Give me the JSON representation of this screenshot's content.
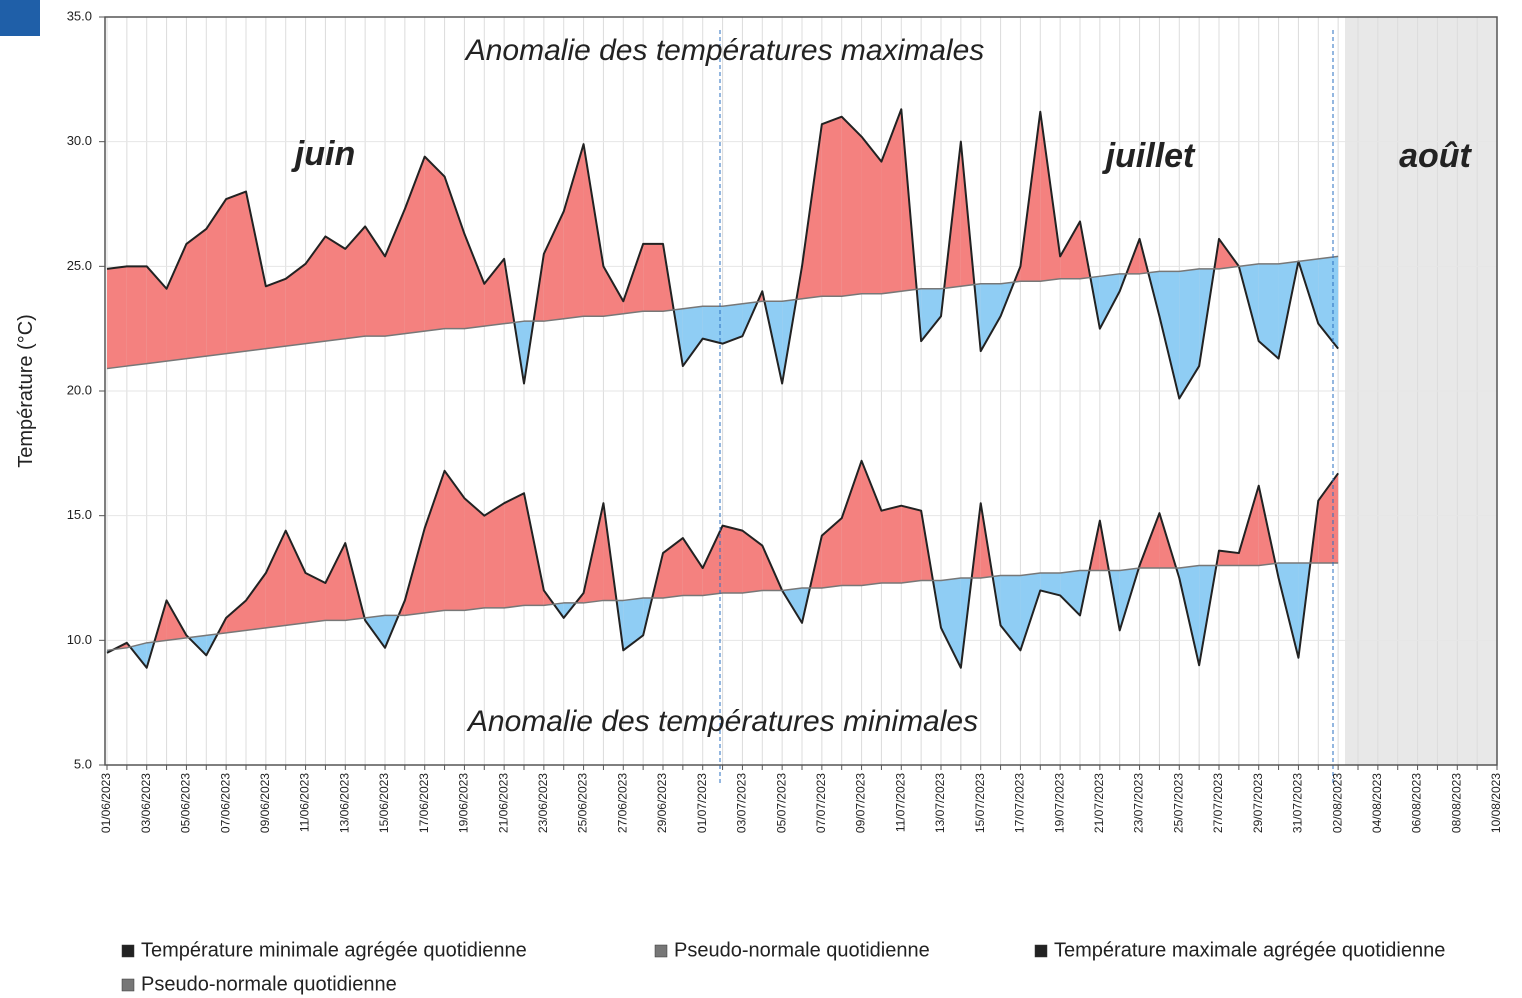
{
  "chart_data": {
    "type": "line",
    "y_label": "Température (°C)",
    "annotations": [
      {
        "text": "Anomalie des températures maximales"
      },
      {
        "text": "Anomalie des températures minimales"
      },
      {
        "text": "juin"
      },
      {
        "text": "juillet"
      },
      {
        "text": "août"
      }
    ],
    "categories": [
      "01/06/2023",
      null,
      "03/06/2023",
      null,
      "05/06/2023",
      null,
      "07/06/2023",
      null,
      "09/06/2023",
      null,
      "11/06/2023",
      null,
      "13/06/2023",
      null,
      "15/06/2023",
      null,
      "17/06/2023",
      null,
      "19/06/2023",
      null,
      "21/06/2023",
      null,
      "23/06/2023",
      null,
      "25/06/2023",
      null,
      "27/06/2023",
      null,
      "29/06/2023",
      null,
      "01/07/2023",
      null,
      "03/07/2023",
      null,
      "05/07/2023",
      null,
      "07/07/2023",
      null,
      "09/07/2023",
      null,
      "11/07/2023",
      null,
      "13/07/2023",
      null,
      "15/07/2023",
      null,
      "17/07/2023",
      null,
      "19/07/2023",
      null,
      "21/07/2023",
      null,
      "23/07/2023",
      null,
      "25/07/2023",
      null,
      "27/07/2023",
      null,
      "29/07/2023",
      null,
      "31/07/2023",
      null,
      "02/08/2023",
      null,
      "04/08/2023",
      null,
      "06/08/2023",
      null,
      "08/08/2023",
      null,
      "10/08/2023"
    ],
    "series": [
      {
        "name": "Température minimale agrégée quotidienne",
        "color": "#222222",
        "values": [
          9.5,
          9.9,
          8.9,
          11.6,
          10.2,
          9.4,
          10.9,
          11.6,
          12.7,
          14.4,
          12.7,
          12.3,
          13.9,
          10.8,
          9.7,
          11.6,
          14.5,
          16.8,
          15.7,
          15.0,
          15.5,
          15.9,
          12.0,
          10.9,
          11.9,
          15.5,
          9.6,
          10.2,
          13.5,
          14.1,
          12.9,
          14.6,
          14.4,
          13.8,
          12.0,
          10.7,
          14.2,
          14.9,
          17.2,
          15.2,
          15.4,
          15.2,
          10.5,
          8.9,
          15.5,
          10.6,
          9.6,
          12.0,
          11.8,
          11.0,
          14.8,
          10.4,
          13.0,
          15.1,
          12.5,
          9.0,
          13.6,
          13.5,
          16.2,
          12.5,
          9.3,
          15.6,
          16.7,
          null,
          null,
          null,
          null,
          null,
          null,
          null,
          null
        ]
      },
      {
        "name": "Pseudo-normale quotidienne",
        "color": "#777777",
        "values": [
          9.6,
          9.7,
          9.9,
          10.0,
          10.1,
          10.2,
          10.3,
          10.4,
          10.5,
          10.6,
          10.7,
          10.8,
          10.8,
          10.9,
          11.0,
          11.0,
          11.1,
          11.2,
          11.2,
          11.3,
          11.3,
          11.4,
          11.4,
          11.5,
          11.5,
          11.6,
          11.6,
          11.7,
          11.7,
          11.8,
          11.8,
          11.9,
          11.9,
          12.0,
          12.0,
          12.1,
          12.1,
          12.2,
          12.2,
          12.3,
          12.3,
          12.4,
          12.4,
          12.5,
          12.5,
          12.6,
          12.6,
          12.7,
          12.7,
          12.8,
          12.8,
          12.8,
          12.9,
          12.9,
          12.9,
          13.0,
          13.0,
          13.0,
          13.0,
          13.1,
          13.1,
          13.1,
          13.1,
          null,
          null,
          null,
          null,
          null,
          null,
          null,
          null
        ]
      },
      {
        "name": "Température maximale agrégée quotidienne",
        "color": "#222222",
        "values": [
          24.9,
          25.0,
          25.0,
          24.1,
          25.9,
          26.5,
          27.7,
          28.0,
          24.2,
          24.5,
          25.1,
          26.2,
          25.7,
          26.6,
          25.4,
          27.3,
          29.4,
          28.6,
          26.3,
          24.3,
          25.3,
          20.3,
          25.5,
          27.2,
          29.9,
          25.0,
          23.6,
          25.9,
          25.9,
          21.0,
          22.1,
          21.9,
          22.2,
          24.0,
          20.3,
          25.0,
          30.7,
          31.0,
          30.2,
          29.2,
          31.3,
          22.0,
          23.0,
          30.0,
          21.6,
          23.0,
          25.0,
          31.2,
          25.4,
          26.8,
          22.5,
          24.0,
          26.1,
          23.0,
          19.7,
          21.0,
          26.1,
          25.0,
          22.0,
          21.3,
          25.2,
          22.7,
          21.7,
          null,
          null,
          null,
          null,
          null,
          null,
          null,
          null
        ]
      },
      {
        "name": "Pseudo-normale quotidienne",
        "color": "#777777",
        "values": [
          20.9,
          21.0,
          21.1,
          21.2,
          21.3,
          21.4,
          21.5,
          21.6,
          21.7,
          21.8,
          21.9,
          22.0,
          22.1,
          22.2,
          22.2,
          22.3,
          22.4,
          22.5,
          22.5,
          22.6,
          22.7,
          22.8,
          22.8,
          22.9,
          23.0,
          23.0,
          23.1,
          23.2,
          23.2,
          23.3,
          23.4,
          23.4,
          23.5,
          23.6,
          23.6,
          23.7,
          23.8,
          23.8,
          23.9,
          23.9,
          24.0,
          24.1,
          24.1,
          24.2,
          24.3,
          24.3,
          24.4,
          24.4,
          24.5,
          24.5,
          24.6,
          24.7,
          24.7,
          24.8,
          24.8,
          24.9,
          24.9,
          25.0,
          25.1,
          25.1,
          25.2,
          25.3,
          25.4,
          null,
          null,
          null,
          null,
          null,
          null,
          null,
          null
        ]
      }
    ],
    "fill_above": "#f4817f",
    "fill_below": "#8fcdf4",
    "ylim": [
      5,
      35
    ],
    "yticks": [
      {
        "value": 5,
        "label": "5.0"
      },
      {
        "value": 10,
        "label": "10.0"
      },
      {
        "value": 15,
        "label": "15.0"
      },
      {
        "value": 20,
        "label": "20.0"
      },
      {
        "value": 25,
        "label": "25.0"
      },
      {
        "value": 30,
        "label": "30.0"
      },
      {
        "value": 35,
        "label": "35.0"
      }
    ],
    "grid": true
  }
}
